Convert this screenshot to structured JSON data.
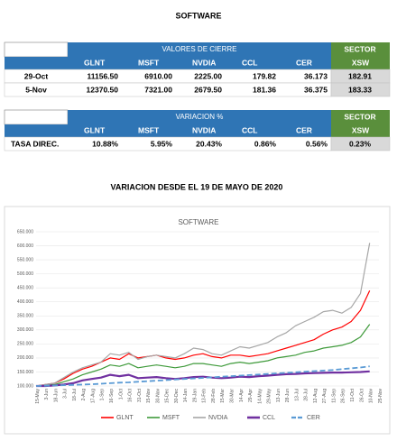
{
  "title": "SOFTWARE",
  "table1": {
    "group_header": "VALORES DE CIERRE",
    "sector_header": "SECTOR",
    "columns": [
      "GLNT",
      "MSFT",
      "NVDIA",
      "CCL",
      "CER",
      "XSW"
    ],
    "rows": [
      [
        "29-Oct",
        "11156.50",
        "6910.00",
        "2225.00",
        "179.82",
        "36.173",
        "182.91"
      ],
      [
        "5-Nov",
        "12370.50",
        "7321.00",
        "2679.50",
        "181.36",
        "36.375",
        "183.33"
      ]
    ]
  },
  "table2": {
    "group_header": "VARIACION %",
    "sector_header": "SECTOR",
    "columns": [
      "GLNT",
      "MSFT",
      "NVDIA",
      "CCL",
      "CER",
      "XSW"
    ],
    "rows": [
      [
        "TASA DIREC.",
        "10.88%",
        "5.95%",
        "20.43%",
        "0.86%",
        "0.56%",
        "0.23%"
      ]
    ]
  },
  "chart_heading": "VARIACION DESDE EL 19 DE MAYO DE 2020",
  "chart_data": {
    "type": "line",
    "title": "SOFTWARE",
    "categories": [
      "15-May",
      "3-Jun",
      "18-Jun",
      "3-Jul",
      "18-Jul",
      "2-Aug",
      "17-Aug",
      "1-Sep",
      "16-Sep",
      "1-Oct",
      "16-Oct",
      "31-Oct",
      "15-Nov",
      "30-Nov",
      "15-Dec",
      "30-Dec",
      "14-Jan",
      "29-Jan",
      "13-Feb",
      "28-Feb",
      "15-Mar",
      "30-Mar",
      "14-Apr",
      "29-Apr",
      "14-May",
      "29-May",
      "13-Jun",
      "28-Jun",
      "13-Jul",
      "28-Jul",
      "12-Aug",
      "27-Aug",
      "11-Sep",
      "26-Sep",
      "11-Oct",
      "26-Oct",
      "10-Nov",
      "25-Nov"
    ],
    "series": [
      {
        "name": "GLNT",
        "color": "#ff0000",
        "width": 1.2,
        "values": [
          100,
          105,
          110,
          125,
          145,
          160,
          170,
          185,
          200,
          195,
          215,
          200,
          205,
          210,
          200,
          195,
          200,
          210,
          215,
          205,
          200,
          210,
          210,
          205,
          210,
          215,
          225,
          235,
          245,
          255,
          265,
          285,
          300,
          310,
          330,
          370,
          440,
          null
        ]
      },
      {
        "name": "MSFT",
        "color": "#3e9a3a",
        "width": 1.2,
        "values": [
          100,
          103,
          105,
          115,
          125,
          140,
          150,
          160,
          175,
          170,
          180,
          165,
          170,
          175,
          170,
          165,
          170,
          180,
          180,
          175,
          170,
          180,
          185,
          180,
          185,
          190,
          200,
          205,
          210,
          220,
          225,
          235,
          240,
          245,
          255,
          275,
          320,
          null
        ]
      },
      {
        "name": "NVDIA",
        "color": "#a6a6a6",
        "width": 1.2,
        "values": [
          100,
          105,
          110,
          130,
          150,
          165,
          175,
          185,
          215,
          210,
          220,
          195,
          205,
          210,
          205,
          200,
          215,
          235,
          230,
          215,
          210,
          225,
          240,
          235,
          245,
          255,
          275,
          290,
          315,
          330,
          345,
          365,
          370,
          360,
          380,
          430,
          610,
          null
        ]
      },
      {
        "name": "CCL",
        "color": "#7030a0",
        "width": 2.2,
        "values": [
          100,
          100,
          102,
          105,
          110,
          120,
          125,
          130,
          140,
          135,
          140,
          128,
          130,
          132,
          128,
          125,
          128,
          132,
          133,
          130,
          128,
          130,
          133,
          132,
          135,
          137,
          140,
          142,
          143,
          145,
          146,
          147,
          148,
          148,
          149,
          150,
          152,
          null
        ]
      },
      {
        "name": "CER",
        "color": "#5b9bd5",
        "width": 1.8,
        "dashed": true,
        "values": [
          100,
          101,
          102,
          103,
          104,
          105,
          106,
          108,
          110,
          112,
          113,
          115,
          117,
          119,
          121,
          123,
          125,
          127,
          129,
          131,
          133,
          135,
          137,
          139,
          141,
          143,
          145,
          147,
          149,
          151,
          153,
          155,
          157,
          160,
          163,
          166,
          170,
          null
        ]
      }
    ],
    "ylim": [
      100,
      650
    ],
    "yticks": [
      {
        "value": 100,
        "label": "100.000"
      },
      {
        "value": 150,
        "label": "150.000"
      },
      {
        "value": 200,
        "label": "200.000"
      },
      {
        "value": 250,
        "label": "250.000"
      },
      {
        "value": 300,
        "label": "300.000"
      },
      {
        "value": 350,
        "label": "350.000"
      },
      {
        "value": 400,
        "label": "400.000"
      },
      {
        "value": 450,
        "label": "450.000"
      },
      {
        "value": 500,
        "label": "500.000"
      },
      {
        "value": 550,
        "label": "550.000"
      },
      {
        "value": 600,
        "label": "600.000"
      },
      {
        "value": 650,
        "label": "650.000"
      }
    ],
    "grid": true,
    "legend": "bottom"
  }
}
